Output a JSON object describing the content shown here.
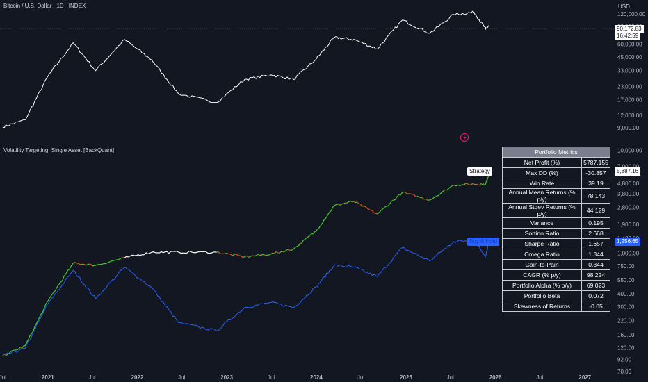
{
  "header": {
    "title": "Bitcoin / U.S. Dollar · 1D · INDEX",
    "currency": "USD",
    "indicator_title": "Volatility Targeting: Single Asset [BackQuant]"
  },
  "price_tag": {
    "value": "90,172.83",
    "countdown": "16:42:59"
  },
  "strategy_tag": {
    "value": "5,887.16"
  },
  "buyhold_tag": {
    "value": "1,256.65"
  },
  "metrics": {
    "title": "Portfolio Metrics",
    "rows": [
      {
        "label": "Net Profit (%)",
        "value": "5787.155"
      },
      {
        "label": "Max DD (%)",
        "value": "-30.857"
      },
      {
        "label": "Win Rate",
        "value": "39.19"
      },
      {
        "label": "Annual Mean Returns (% p/y)",
        "value": "78.143"
      },
      {
        "label": "Annual Stdev Returns (% p/y)",
        "value": "44.129"
      },
      {
        "label": "Variance",
        "value": "0.195"
      },
      {
        "label": "Sortino Ratio",
        "value": "2.668"
      },
      {
        "label": "Sharpe Ratio",
        "value": "1.657"
      },
      {
        "label": "Omega Ratio",
        "value": "1.344"
      },
      {
        "label": "Gain-to-Pain",
        "value": "0.344"
      },
      {
        "label": "CAGR (% p/y)",
        "value": "98.224"
      },
      {
        "label": "Portfolio Alpha (% p/y)",
        "value": "69.023"
      },
      {
        "label": "Portfolio Beta",
        "value": "0.072"
      },
      {
        "label": "Skewness of Returns",
        "value": "-0.05"
      }
    ]
  },
  "chart_data": [
    {
      "type": "line",
      "title": "Bitcoin / U.S. Dollar · 1D · INDEX",
      "scale": "log",
      "ylim": [
        7000,
        140000
      ],
      "y_ticks": [
        "120,000.00",
        "90,000.00",
        "60,000.00",
        "45,000.00",
        "33,000.00",
        "23,000.00",
        "17,000.00",
        "12,000.00",
        "9,000.00"
      ],
      "x": [
        "2020-07-01",
        "2020-10-01",
        "2021-01-01",
        "2021-04-15",
        "2021-07-15",
        "2021-11-10",
        "2022-03-01",
        "2022-06-18",
        "2022-11-20",
        "2023-03-15",
        "2023-07-01",
        "2023-10-01",
        "2024-01-01",
        "2024-03-14",
        "2024-06-01",
        "2024-09-06",
        "2024-12-17",
        "2025-04-08",
        "2025-07-15",
        "2025-10-06",
        "2025-11-22",
        "2025-12-05"
      ],
      "series": [
        {
          "values": [
            9200,
            10800,
            29000,
            62000,
            33000,
            67000,
            42000,
            19500,
            16000,
            27000,
            30000,
            27000,
            43000,
            70000,
            67000,
            54000,
            104000,
            77000,
            118000,
            124000,
            85000,
            90172.83
          ]
        }
      ]
    },
    {
      "type": "line",
      "title": "Volatility Targeting: Single Asset [BackQuant]",
      "scale": "log",
      "ylim": [
        70,
        12000
      ],
      "y_ticks": [
        "10,000.00",
        "7,000.00",
        "4,800.00",
        "3,800.00",
        "2,800.00",
        "1,900.00",
        "1,400.00",
        "1,000.00",
        "750.00",
        "550.00",
        "400.00",
        "300.00",
        "220.00",
        "160.00",
        "120.00",
        "92.00",
        "70.00"
      ],
      "x": [
        "2020-07-01",
        "2020-10-01",
        "2021-01-01",
        "2021-04-15",
        "2021-07-15",
        "2021-11-10",
        "2022-03-01",
        "2022-06-18",
        "2022-11-20",
        "2023-03-15",
        "2023-07-01",
        "2023-10-01",
        "2024-01-01",
        "2024-03-14",
        "2024-06-01",
        "2024-09-06",
        "2024-12-17",
        "2025-04-08",
        "2025-07-15",
        "2025-10-06",
        "2025-11-22",
        "2025-12-05"
      ],
      "series": [
        {
          "name": "Strategy",
          "values": [
            100,
            125,
            340,
            800,
            760,
            900,
            1020,
            1020,
            1020,
            920,
            980,
            1100,
            1650,
            2900,
            3200,
            2400,
            3900,
            3300,
            4600,
            4700,
            4700,
            5887.16
          ]
        },
        {
          "name": "Buy & Hold",
          "values": [
            100,
            118,
            320,
            680,
            360,
            730,
            460,
            210,
            175,
            295,
            330,
            295,
            470,
            760,
            730,
            590,
            1130,
            840,
            1290,
            1350,
            930,
            1256.65
          ]
        }
      ],
      "x_ticks": [
        "Jul",
        "2021",
        "Jul",
        "2022",
        "Jul",
        "2023",
        "Jul",
        "2024",
        "Jul",
        "2025",
        "Jul",
        "2026",
        "Jul",
        "2027"
      ]
    }
  ],
  "colors": {
    "background": "#131722",
    "btc_line": "#ffffff",
    "strategy_up": "#3fd12c",
    "strategy_down": "#e0541f",
    "strategy_flat": "#ffffff",
    "buyhold": "#2962ff",
    "axis_text": "#b2b5be"
  },
  "icons": [
    "lightning-icon"
  ]
}
